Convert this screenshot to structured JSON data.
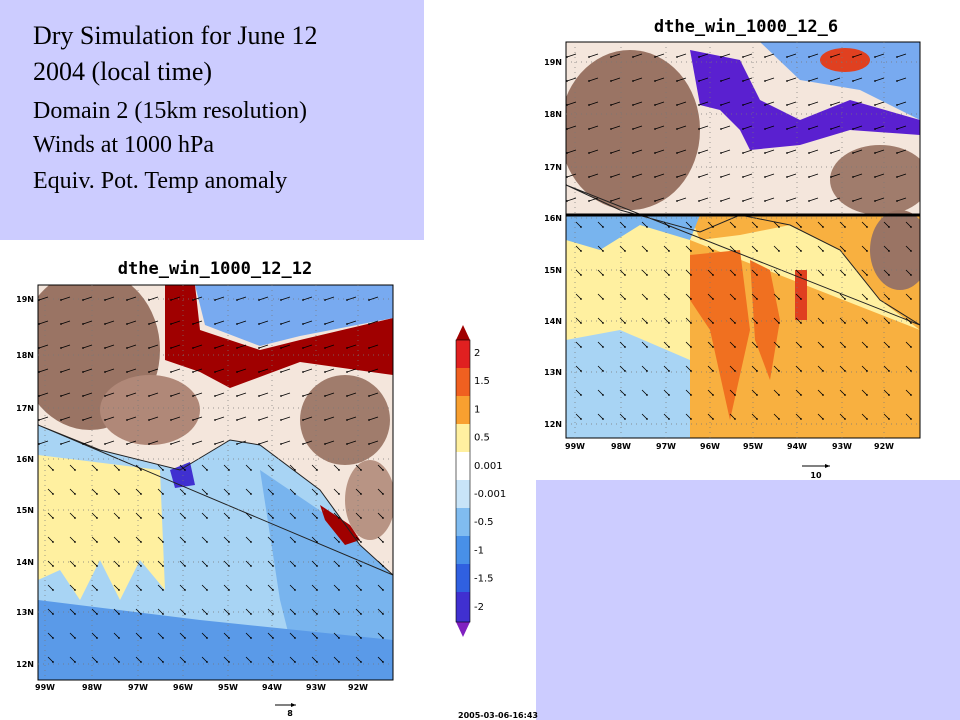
{
  "slide": {
    "text_lines": [
      "Dry Simulation for June 12",
      "2004 (local time)",
      "Domain 2 (15km resolution)",
      "Winds at 1000 hPa",
      "Equiv. Pot. Temp anomaly"
    ],
    "timestamp": "2005-03-06-16:43"
  },
  "maps": [
    {
      "title": "dthe_win_1000_12_12",
      "lat_labels": [
        "19N",
        "18N",
        "17N",
        "16N",
        "15N",
        "14N",
        "13N",
        "12N"
      ],
      "lon_labels": [
        "99W",
        "98W",
        "97W",
        "96W",
        "95W",
        "94W",
        "93W",
        "92W"
      ],
      "ref_vector_label": "8"
    },
    {
      "title": "dthe_win_1000_12_6",
      "lat_labels": [
        "19N",
        "18N",
        "17N",
        "16N",
        "15N",
        "14N",
        "13N",
        "12N"
      ],
      "lon_labels": [
        "99W",
        "98W",
        "97W",
        "96W",
        "95W",
        "94W",
        "93W",
        "92W"
      ],
      "ref_vector_label": "10"
    }
  ],
  "colorbar": {
    "labels": [
      "2",
      "1.5",
      "1",
      "0.5",
      "0.001",
      "-0.001",
      "-0.5",
      "-1",
      "-1.5",
      "-2"
    ]
  }
}
